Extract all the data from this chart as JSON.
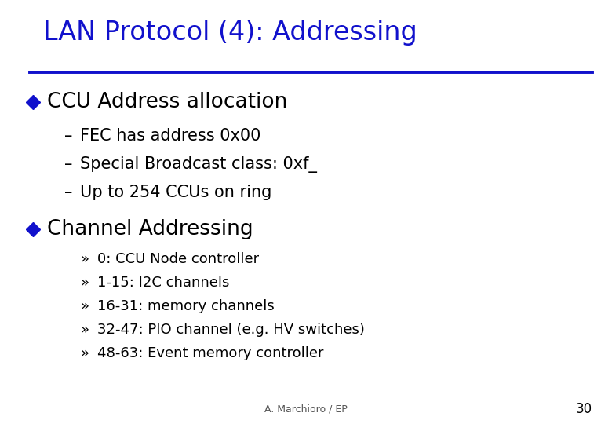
{
  "title": "LAN Protocol (4): Addressing",
  "title_color": "#1111CC",
  "title_fontsize": 24,
  "line_color": "#1111CC",
  "background_color": "#FFFFFF",
  "bullet_color": "#1111CC",
  "text_color": "#000000",
  "footer_text": "A. Marchioro / EP",
  "page_number": "30",
  "bullet1_text": "CCU Address allocation",
  "bullet1_fontsize": 19,
  "sub1_items": [
    "FEC has address 0x00",
    "Special Broadcast class: 0xf_",
    "Up to 254 CCUs on ring"
  ],
  "sub1_fontsize": 15,
  "bullet2_text": "Channel Addressing",
  "bullet2_fontsize": 19,
  "sub2_items": [
    "0: CCU Node controller",
    "1-15: I2C channels",
    "16-31: memory channels",
    "32-47: PIO channel (e.g. HV switches)",
    "48-63: Event memory controller"
  ],
  "sub2_fontsize": 13,
  "footer_fontsize": 9,
  "page_fontsize": 12
}
